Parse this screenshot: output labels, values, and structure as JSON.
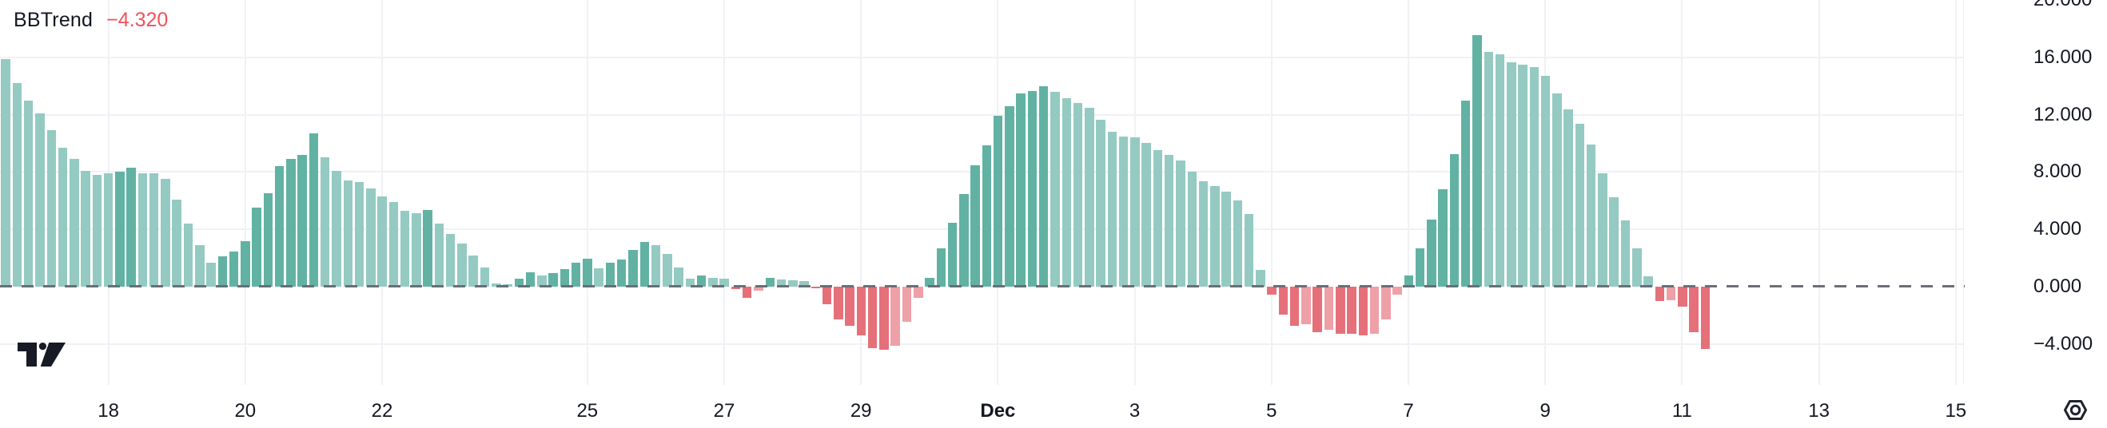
{
  "header": {
    "title": "BBTrend",
    "value": "−4.320"
  },
  "colors": {
    "background": "#ffffff",
    "text": "#131722",
    "value_text": "#f0525a",
    "grid": "#f0f1f4",
    "zero_line": "#696e78",
    "logo": "#161b26",
    "icon_stroke": "#1e222d",
    "bar": {
      "g": "#61b2a3",
      "G": "#94cac2",
      "r": "#e57079",
      "R": "#eea0a7"
    }
  },
  "icons": {
    "logo": "tradingview-logo",
    "settings": "hexagon-gear-icon"
  },
  "chart_data": {
    "type": "bar",
    "title": "BBTrend",
    "current_value": -4.32,
    "grid": true,
    "legend_position": "top-left",
    "ylim": [
      -9.8,
      20.0
    ],
    "y_ticks": [
      {
        "label": "20.000",
        "value": 20
      },
      {
        "label": "16.000",
        "value": 16
      },
      {
        "label": "12.000",
        "value": 12
      },
      {
        "label": "8.000",
        "value": 8
      },
      {
        "label": "4.000",
        "value": 4
      },
      {
        "label": "0.000",
        "value": 0
      },
      {
        "label": "−4.000",
        "value": -4
      }
    ],
    "x_ticks": [
      {
        "label": "18",
        "day_index": 0,
        "bold": false
      },
      {
        "label": "20",
        "day_index": 2,
        "bold": false
      },
      {
        "label": "22",
        "day_index": 4,
        "bold": false
      },
      {
        "label": "25",
        "day_index": 7,
        "bold": false
      },
      {
        "label": "27",
        "day_index": 9,
        "bold": false
      },
      {
        "label": "29",
        "day_index": 11,
        "bold": false
      },
      {
        "label": "Dec",
        "day_index": 13,
        "bold": true
      },
      {
        "label": "3",
        "day_index": 15,
        "bold": false
      },
      {
        "label": "5",
        "day_index": 17,
        "bold": false
      },
      {
        "label": "7",
        "day_index": 19,
        "bold": false
      },
      {
        "label": "9",
        "day_index": 21,
        "bold": false
      },
      {
        "label": "11",
        "day_index": 23,
        "bold": false
      },
      {
        "label": "13",
        "day_index": 25,
        "bold": false
      },
      {
        "label": "15",
        "day_index": 27,
        "bold": false
      }
    ],
    "shade_legend": {
      "g": "rising-positive",
      "G": "falling-positive",
      "r": "falling-negative",
      "R": "rising-negative"
    },
    "bars": [
      [
        15.9,
        "G"
      ],
      [
        14.2,
        "G"
      ],
      [
        13.0,
        "G"
      ],
      [
        12.1,
        "G"
      ],
      [
        10.9,
        "G"
      ],
      [
        9.7,
        "G"
      ],
      [
        8.9,
        "G"
      ],
      [
        8.1,
        "G"
      ],
      [
        7.8,
        "G"
      ],
      [
        7.9,
        "G"
      ],
      [
        8.05,
        "g"
      ],
      [
        8.3,
        "g"
      ],
      [
        7.9,
        "G"
      ],
      [
        7.9,
        "G"
      ],
      [
        7.5,
        "G"
      ],
      [
        6.1,
        "G"
      ],
      [
        4.4,
        "G"
      ],
      [
        2.9,
        "G"
      ],
      [
        1.7,
        "G"
      ],
      [
        2.1,
        "g"
      ],
      [
        2.45,
        "g"
      ],
      [
        3.2,
        "g"
      ],
      [
        5.5,
        "g"
      ],
      [
        6.5,
        "g"
      ],
      [
        8.4,
        "g"
      ],
      [
        8.9,
        "g"
      ],
      [
        9.2,
        "g"
      ],
      [
        10.7,
        "g"
      ],
      [
        9.05,
        "G"
      ],
      [
        8.1,
        "G"
      ],
      [
        7.4,
        "G"
      ],
      [
        7.3,
        "G"
      ],
      [
        6.85,
        "G"
      ],
      [
        6.3,
        "G"
      ],
      [
        5.9,
        "G"
      ],
      [
        5.3,
        "G"
      ],
      [
        5.15,
        "G"
      ],
      [
        5.35,
        "g"
      ],
      [
        4.4,
        "G"
      ],
      [
        3.7,
        "G"
      ],
      [
        3.0,
        "G"
      ],
      [
        2.15,
        "G"
      ],
      [
        1.35,
        "G"
      ],
      [
        0.25,
        "G"
      ],
      [
        0.15,
        "G"
      ],
      [
        0.55,
        "g"
      ],
      [
        1.0,
        "g"
      ],
      [
        0.8,
        "G"
      ],
      [
        0.95,
        "g"
      ],
      [
        1.25,
        "g"
      ],
      [
        1.65,
        "g"
      ],
      [
        1.95,
        "g"
      ],
      [
        1.3,
        "G"
      ],
      [
        1.65,
        "g"
      ],
      [
        1.9,
        "g"
      ],
      [
        2.55,
        "g"
      ],
      [
        3.15,
        "g"
      ],
      [
        2.9,
        "G"
      ],
      [
        2.3,
        "G"
      ],
      [
        1.35,
        "G"
      ],
      [
        0.55,
        "G"
      ],
      [
        0.8,
        "g"
      ],
      [
        0.6,
        "G"
      ],
      [
        0.55,
        "G"
      ],
      [
        -0.15,
        "r"
      ],
      [
        -0.75,
        "r"
      ],
      [
        -0.3,
        "R"
      ],
      [
        0.6,
        "g"
      ],
      [
        0.5,
        "G"
      ],
      [
        0.45,
        "G"
      ],
      [
        0.4,
        "G"
      ],
      [
        -0.05,
        "r"
      ],
      [
        -1.2,
        "r"
      ],
      [
        -2.3,
        "r"
      ],
      [
        -2.75,
        "r"
      ],
      [
        -3.4,
        "r"
      ],
      [
        -4.3,
        "r"
      ],
      [
        -4.4,
        "r"
      ],
      [
        -4.1,
        "R"
      ],
      [
        -2.45,
        "R"
      ],
      [
        -0.8,
        "R"
      ],
      [
        0.6,
        "g"
      ],
      [
        2.65,
        "g"
      ],
      [
        4.45,
        "g"
      ],
      [
        6.45,
        "g"
      ],
      [
        8.45,
        "g"
      ],
      [
        9.85,
        "g"
      ],
      [
        11.95,
        "g"
      ],
      [
        12.6,
        "g"
      ],
      [
        13.5,
        "g"
      ],
      [
        13.65,
        "g"
      ],
      [
        14.0,
        "g"
      ],
      [
        13.6,
        "G"
      ],
      [
        13.15,
        "G"
      ],
      [
        12.8,
        "G"
      ],
      [
        12.5,
        "G"
      ],
      [
        11.65,
        "G"
      ],
      [
        10.8,
        "G"
      ],
      [
        10.5,
        "G"
      ],
      [
        10.4,
        "G"
      ],
      [
        10.05,
        "G"
      ],
      [
        9.55,
        "G"
      ],
      [
        9.2,
        "G"
      ],
      [
        8.8,
        "G"
      ],
      [
        8.0,
        "G"
      ],
      [
        7.35,
        "G"
      ],
      [
        7.05,
        "G"
      ],
      [
        6.65,
        "G"
      ],
      [
        6.0,
        "G"
      ],
      [
        5.1,
        "G"
      ],
      [
        1.2,
        "G"
      ],
      [
        -0.55,
        "r"
      ],
      [
        -1.95,
        "r"
      ],
      [
        -2.75,
        "r"
      ],
      [
        -2.6,
        "R"
      ],
      [
        -3.2,
        "r"
      ],
      [
        -3.0,
        "R"
      ],
      [
        -3.3,
        "r"
      ],
      [
        -3.3,
        "r"
      ],
      [
        -3.4,
        "r"
      ],
      [
        -3.3,
        "R"
      ],
      [
        -2.3,
        "R"
      ],
      [
        -0.55,
        "R"
      ],
      [
        0.8,
        "g"
      ],
      [
        2.7,
        "g"
      ],
      [
        4.7,
        "g"
      ],
      [
        6.8,
        "g"
      ],
      [
        9.25,
        "g"
      ],
      [
        13.0,
        "g"
      ],
      [
        17.55,
        "g"
      ],
      [
        16.4,
        "G"
      ],
      [
        16.2,
        "G"
      ],
      [
        15.65,
        "G"
      ],
      [
        15.5,
        "G"
      ],
      [
        15.3,
        "G"
      ],
      [
        14.7,
        "G"
      ],
      [
        13.5,
        "G"
      ],
      [
        12.35,
        "G"
      ],
      [
        11.35,
        "G"
      ],
      [
        9.9,
        "G"
      ],
      [
        7.9,
        "G"
      ],
      [
        6.25,
        "G"
      ],
      [
        4.6,
        "G"
      ],
      [
        2.65,
        "G"
      ],
      [
        0.7,
        "G"
      ],
      [
        -1.0,
        "r"
      ],
      [
        -0.95,
        "R"
      ],
      [
        -1.4,
        "r"
      ],
      [
        -3.2,
        "r"
      ],
      [
        -4.32,
        "r"
      ]
    ]
  }
}
